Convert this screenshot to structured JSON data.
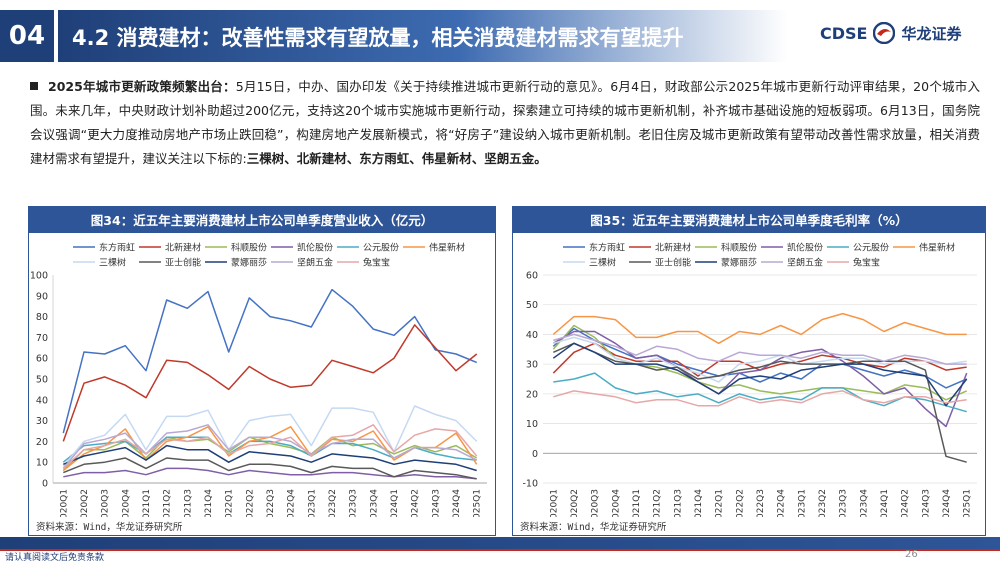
{
  "header": {
    "section_number": "04",
    "title": "4.2 消费建材：改善性需求有望放量，相关消费建材需求有望提升",
    "logo_en": "CDSE",
    "logo_cn": "华龙证券"
  },
  "summary": {
    "lead": "2025年城市更新政策频繁出台：",
    "body": "5月15日，中办、国办印发《关于持续推进城市更新行动的意见》。6月4日，财政部公示2025年城市更新行动评审结果，20个城市入围。未来几年，中央财政计划补助超过200亿元，支持这20个城市实施城市更新行动，探索建立可持续的城市更新机制，补齐城市基础设施的短板弱项。6月13日，国务院会议强调“更大力度推动房地产市场止跌回稳”，构建房地产发展新模式，将“好房子”建设纳入城市更新机制。老旧住房及城市更新政策有望带动改善性需求放量，相关消费建材需求有望提升，建议关注以下标的:",
    "tail": "三棵树、北新建材、东方雨虹、伟星新材、坚朗五金。"
  },
  "panels": {
    "left_title": "图34：近五年主要消费建材上市公司单季度营业收入（亿元）",
    "right_title": "图35：近五年主要消费建材上市公司单季度毛利率（%）",
    "left_source": "资料来源：Wind，华龙证券研究所",
    "right_source": "资料来源：Wind，华龙证券研究所"
  },
  "footer": {
    "disclaimer": "请认真阅读文后免责条款",
    "page": "26"
  },
  "colors": {
    "东方雨虹": "#4472c4",
    "北新建材": "#c0392b",
    "科顺股份": "#9bbb59",
    "凯伦股份": "#7f5fa6",
    "公元股份": "#4bacc6",
    "伟星新材": "#f79646",
    "三棵树": "#c5d9f1",
    "亚士创能": "#595959",
    "蒙娜丽莎": "#1f3f78",
    "坚朗五金": "#b9a8d4",
    "兔宝宝": "#e6a7a7"
  },
  "chart_data": [
    {
      "type": "line",
      "title": "图34：近五年主要消费建材上市公司单季度营业收入（亿元）",
      "ylim": [
        0,
        100
      ],
      "yticks": [
        0,
        10,
        20,
        30,
        40,
        50,
        60,
        70,
        80,
        90,
        100
      ],
      "legend_position": "top",
      "grid": false,
      "x": [
        "2020Q1",
        "2020Q2",
        "2020Q3",
        "2020Q4",
        "2021Q1",
        "2021Q2",
        "2021Q3",
        "2021Q4",
        "2022Q1",
        "2022Q2",
        "2022Q3",
        "2022Q4",
        "2023Q1",
        "2023Q2",
        "2023Q3",
        "2023Q4",
        "2024Q1",
        "2024Q2",
        "2024Q3",
        "2024Q4",
        "2025Q1"
      ],
      "series": [
        {
          "name": "东方雨虹",
          "values": [
            24,
            63,
            62,
            66,
            54,
            88,
            84,
            92,
            63,
            89,
            80,
            78,
            75,
            93,
            85,
            74,
            71,
            80,
            64,
            62,
            58
          ]
        },
        {
          "name": "北新建材",
          "values": [
            20,
            48,
            51,
            47,
            41,
            59,
            58,
            52,
            45,
            56,
            50,
            46,
            47,
            59,
            56,
            53,
            60,
            76,
            65,
            54,
            62
          ]
        },
        {
          "name": "科顺股份",
          "values": [
            6,
            16,
            16,
            20,
            12,
            22,
            20,
            21,
            15,
            22,
            19,
            17,
            14,
            22,
            18,
            19,
            14,
            18,
            15,
            18,
            12
          ]
        },
        {
          "name": "凯伦股份",
          "values": [
            3,
            5,
            5,
            6,
            4,
            7,
            7,
            6,
            4,
            6,
            5,
            4,
            4,
            5,
            5,
            4,
            3,
            4,
            3,
            3,
            2
          ]
        },
        {
          "name": "公元股份",
          "values": [
            10,
            18,
            19,
            20,
            14,
            22,
            22,
            22,
            14,
            20,
            20,
            18,
            13,
            19,
            19,
            16,
            12,
            17,
            14,
            12,
            11
          ]
        },
        {
          "name": "伟星新材",
          "values": [
            6,
            14,
            18,
            26,
            11,
            20,
            22,
            27,
            13,
            20,
            22,
            27,
            13,
            21,
            20,
            25,
            11,
            17,
            17,
            24,
            9
          ]
        },
        {
          "name": "三棵树",
          "values": [
            8,
            20,
            23,
            33,
            16,
            32,
            32,
            35,
            16,
            30,
            32,
            33,
            18,
            36,
            36,
            34,
            15,
            37,
            33,
            30,
            20
          ]
        },
        {
          "name": "亚士创能",
          "values": [
            5,
            9,
            10,
            12,
            7,
            12,
            11,
            11,
            6,
            9,
            9,
            8,
            5,
            8,
            7,
            7,
            3,
            6,
            5,
            4,
            2
          ]
        },
        {
          "name": "蒙娜丽莎",
          "values": [
            9,
            13,
            15,
            17,
            11,
            18,
            16,
            16,
            10,
            15,
            14,
            13,
            10,
            14,
            13,
            12,
            9,
            11,
            10,
            9,
            6
          ]
        },
        {
          "name": "坚朗五金",
          "values": [
            7,
            19,
            21,
            24,
            14,
            24,
            25,
            28,
            16,
            22,
            22,
            20,
            14,
            19,
            21,
            21,
            12,
            17,
            17,
            16,
            11
          ]
        },
        {
          "name": "兔宝宝",
          "values": [
            7,
            16,
            18,
            21,
            14,
            21,
            20,
            22,
            14,
            18,
            19,
            22,
            13,
            22,
            23,
            28,
            15,
            23,
            26,
            25,
            13
          ]
        }
      ]
    },
    {
      "type": "line",
      "title": "图35：近五年主要消费建材上市公司单季度毛利率（%）",
      "ylim": [
        -10,
        60
      ],
      "yticks": [
        -10,
        0,
        10,
        20,
        30,
        40,
        50,
        60
      ],
      "legend_position": "top",
      "grid": true,
      "x": [
        "2020Q1",
        "2020Q2",
        "2020Q3",
        "2020Q4",
        "2021Q1",
        "2021Q2",
        "2021Q3",
        "2021Q4",
        "2022Q1",
        "2022Q2",
        "2022Q3",
        "2022Q4",
        "2023Q1",
        "2023Q2",
        "2023Q3",
        "2023Q4",
        "2024Q1",
        "2024Q2",
        "2024Q3",
        "2024Q4",
        "2025Q1"
      ],
      "series": [
        {
          "name": "东方雨虹",
          "values": [
            36,
            42,
            38,
            35,
            32,
            33,
            30,
            28,
            26,
            27,
            24,
            27,
            25,
            30,
            30,
            28,
            26,
            28,
            26,
            22,
            25
          ]
        },
        {
          "name": "北新建材",
          "values": [
            27,
            34,
            37,
            33,
            31,
            31,
            31,
            26,
            31,
            31,
            28,
            30,
            31,
            33,
            32,
            30,
            29,
            32,
            31,
            28,
            29
          ]
        },
        {
          "name": "科顺股份",
          "values": [
            35,
            43,
            39,
            32,
            30,
            29,
            27,
            24,
            22,
            23,
            21,
            20,
            21,
            22,
            22,
            21,
            20,
            23,
            22,
            18,
            21
          ]
        },
        {
          "name": "凯伦股份",
          "values": [
            37,
            41,
            41,
            37,
            32,
            33,
            29,
            24,
            20,
            27,
            28,
            32,
            34,
            35,
            31,
            26,
            20,
            22,
            15,
            9,
            27
          ]
        },
        {
          "name": "公元股份",
          "values": [
            24,
            25,
            27,
            22,
            20,
            21,
            19,
            20,
            17,
            20,
            18,
            19,
            18,
            22,
            22,
            18,
            16,
            19,
            18,
            16,
            14
          ]
        },
        {
          "name": "伟星新材",
          "values": [
            40,
            46,
            46,
            45,
            39,
            39,
            41,
            41,
            37,
            41,
            40,
            43,
            40,
            45,
            47,
            45,
            41,
            44,
            42,
            40,
            40
          ]
        },
        {
          "name": "三棵树",
          "values": [
            37,
            39,
            37,
            32,
            30,
            32,
            29,
            27,
            24,
            30,
            31,
            33,
            30,
            31,
            32,
            32,
            30,
            31,
            31,
            30,
            31
          ]
        },
        {
          "name": "亚士创能",
          "values": [
            34,
            37,
            34,
            31,
            30,
            28,
            29,
            25,
            26,
            28,
            29,
            31,
            30,
            30,
            30,
            31,
            31,
            31,
            28,
            -1,
            -3
          ]
        },
        {
          "name": "蒙娜丽莎",
          "values": [
            32,
            37,
            34,
            30,
            30,
            30,
            28,
            24,
            20,
            25,
            26,
            25,
            28,
            29,
            30,
            30,
            28,
            27,
            26,
            16,
            25
          ]
        },
        {
          "name": "坚朗五金",
          "values": [
            38,
            40,
            38,
            36,
            33,
            36,
            35,
            32,
            31,
            34,
            33,
            33,
            32,
            34,
            33,
            33,
            31,
            33,
            32,
            30,
            30
          ]
        },
        {
          "name": "兔宝宝",
          "values": [
            19,
            21,
            20,
            19,
            17,
            18,
            18,
            16,
            16,
            19,
            17,
            18,
            17,
            20,
            21,
            18,
            17,
            19,
            19,
            17,
            18
          ]
        }
      ]
    }
  ]
}
